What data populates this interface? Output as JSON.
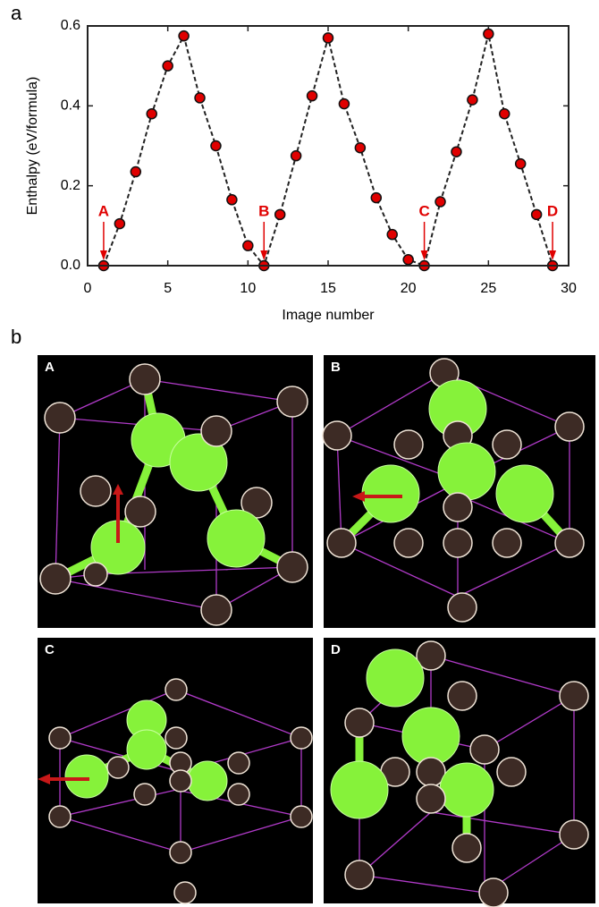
{
  "panel_labels": [
    "a",
    "b"
  ],
  "chart_data": {
    "type": "line",
    "y_label": "Enthalpy (eV/formula)",
    "x_label": "Image number",
    "x": [
      1,
      2,
      3,
      4,
      5,
      6,
      7,
      8,
      9,
      10,
      11,
      12,
      13,
      14,
      15,
      16,
      17,
      18,
      19,
      20,
      21,
      22,
      23,
      24,
      25,
      26,
      27,
      28,
      29
    ],
    "series": [
      {
        "color": "#e00000",
        "values": [
          0.0,
          0.105,
          0.235,
          0.38,
          0.5,
          0.575,
          0.42,
          0.3,
          0.165,
          0.05,
          0.0,
          0.128,
          0.275,
          0.425,
          0.57,
          0.405,
          0.295,
          0.17,
          0.078,
          0.015,
          0.0,
          0.16,
          0.285,
          0.415,
          0.58,
          0.38,
          0.255,
          0.128,
          0.0
        ]
      }
    ],
    "xlim": [
      0,
      30
    ],
    "xticks": [
      0,
      5,
      10,
      15,
      20,
      25,
      30
    ],
    "ylim": [
      0,
      0.6
    ],
    "yticks": [
      {
        "value": 0,
        "label": "0.0"
      },
      0.2,
      0.4,
      0.6
    ],
    "annotations": [
      {
        "text": "A",
        "x": 1
      },
      {
        "text": "B",
        "x": 11
      },
      {
        "text": "C",
        "x": 21
      },
      {
        "text": "D",
        "x": 29
      }
    ]
  },
  "structures": [
    {
      "label": "A"
    },
    {
      "label": "B"
    },
    {
      "label": "C"
    },
    {
      "label": "D"
    }
  ]
}
